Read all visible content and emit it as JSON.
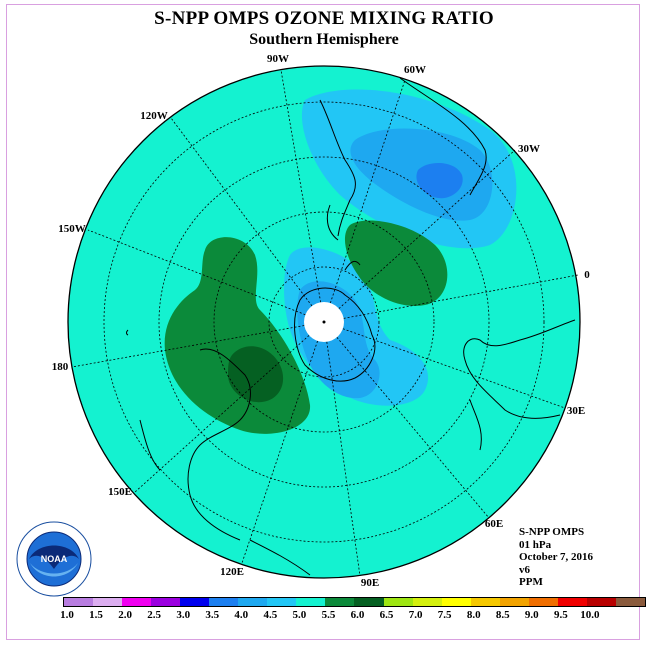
{
  "title": "S-NPP OMPS OZONE MIXING RATIO",
  "subtitle": "Southern Hemisphere",
  "info": {
    "instrument": "S-NPP OMPS",
    "level": "01 hPa",
    "date": "October 7, 2016",
    "version": "v6",
    "units": "PPM"
  },
  "logo_text": "NOAA",
  "longitude_labels": {
    "lon_90w": "90W",
    "lon_60w": "60W",
    "lon_30w": "30W",
    "lon_120w": "120W",
    "lon_150w": "150W",
    "lon_0": "0",
    "lon_180": "180",
    "lon_30e": "30E",
    "lon_150e": "150E",
    "lon_60e": "60E",
    "lon_120e": "120E",
    "lon_90e": "90E"
  },
  "colorbar": {
    "colors": [
      "#b87de0",
      "#dcaef0",
      "#f000f0",
      "#9b00e0",
      "#0000ee",
      "#1c7ff0",
      "#1ea8f0",
      "#22c6f5",
      "#14f2d0",
      "#0b8a3a",
      "#056022",
      "#9ee612",
      "#d4f00e",
      "#ffff00",
      "#f5c800",
      "#f2a300",
      "#f06e00",
      "#f00000",
      "#b80000",
      "#8a5a3c"
    ],
    "labels": [
      "1.0",
      "1.5",
      "2.0",
      "2.5",
      "3.0",
      "3.5",
      "4.0",
      "4.5",
      "5.0",
      "5.5",
      "6.0",
      "6.5",
      "7.0",
      "7.5",
      "8.0",
      "8.5",
      "9.0",
      "9.5",
      "10.0"
    ]
  }
}
